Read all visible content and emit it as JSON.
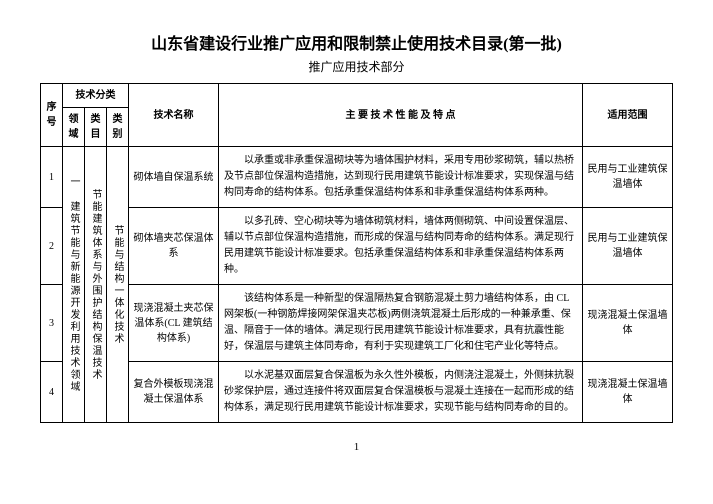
{
  "title": "山东省建设行业推广应用和限制禁止使用技术目录(第一批)",
  "subtitle": "推广应用技术部分",
  "headers": {
    "seq": "序号",
    "techcat": "技术分类",
    "domain": "领域",
    "category": "类目",
    "type": "类别",
    "techname": "技术名称",
    "features": "主 要 技 术 性 能 及 特 点",
    "scope": "适用范围"
  },
  "domain_v": "一 建筑节能与新能源开发利用技术领域",
  "category_v": "节能建筑体系与外围护结构保温技术",
  "type_v": "节能与结构一体化技术",
  "rows": [
    {
      "seq": "1",
      "name": "砌体墙自保温系统",
      "desc": "以承重或非承重保温砌块等为墙体围护材料，采用专用砂浆砌筑，辅以热桥及节点部位保温构造措施，达到现行民用建筑节能设计标准要求，实现保温与结构同寿命的结构体系。包括承重保温结构体系和非承重保温结构体系两种。",
      "scope": "民用与工业建筑保温墙体"
    },
    {
      "seq": "2",
      "name": "砌体墙夹芯保温体系",
      "desc": "以多孔砖、空心砌块等为墙体砌筑材料，墙体两侧砌筑、中间设置保温层、辅以节点部位保温构造措施，而形成的保温与结构同寿命的结构体系。满足现行民用建筑节能设计标准要求。包括承重保温结构体系和非承重保温结构体系两种。",
      "scope": "民用与工业建筑保温墙体"
    },
    {
      "seq": "3",
      "name": "现浇混凝土夹芯保温体系(CL 建筑结构体系)",
      "desc": "该结构体系是一种新型的保温隔热复合钢筋混凝土剪力墙结构体系，由 CL 网架板(一种钢筋焊接网架保温夹芯板)两侧浇筑混凝土后形成的一种兼承重、保温、隔音于一体的墙体。满足现行民用建筑节能设计标准要求，具有抗震性能好，保温层与建筑主体同寿命，有利于实现建筑工厂化和住宅产业化等特点。",
      "scope": "现浇混凝土保温墙体"
    },
    {
      "seq": "4",
      "name": "复合外模板现浇混凝土保温体系",
      "desc": "以水泥基双面层复合保温板为永久性外模板，内侧浇注混凝土，外侧抹抗裂砂浆保护层，通过连接件将双面层复合保温模板与混凝土连接在一起而形成的结构体系，满足现行民用建筑节能设计标准要求，实现节能与结构同寿命的目的。",
      "scope": "现浇混凝土保温墙体"
    }
  ],
  "pagenum": "1"
}
